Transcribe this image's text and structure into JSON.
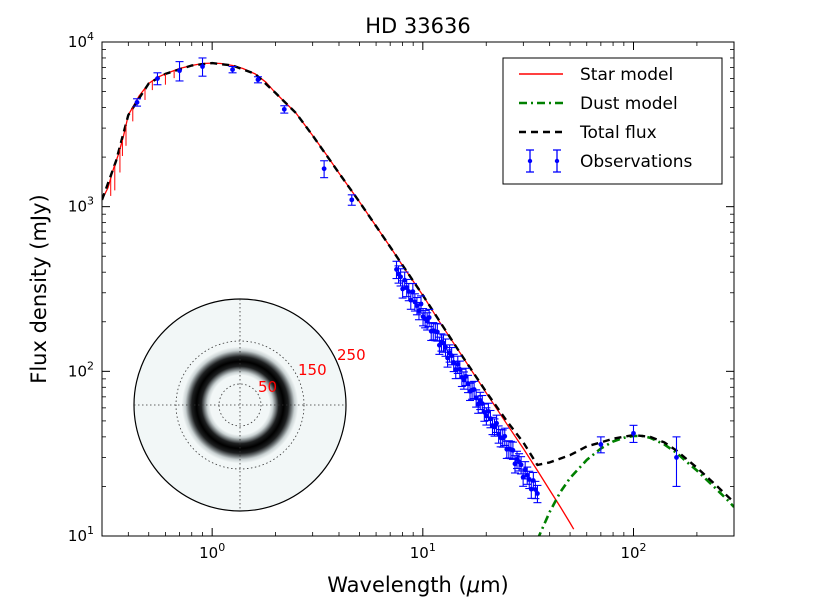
{
  "chart_data": {
    "type": "line",
    "title": "HD 33636",
    "xlabel": "Wavelength (μm)",
    "ylabel": "Flux density (mJy)",
    "xscale": "log",
    "yscale": "log",
    "xlim": [
      0.3,
      300
    ],
    "ylim": [
      10,
      10000
    ],
    "x_ticks": [
      {
        "value": 1,
        "label": "10⁰",
        "base": "10",
        "exp": "0"
      },
      {
        "value": 10,
        "label": "10¹",
        "base": "10",
        "exp": "1"
      },
      {
        "value": 100,
        "label": "10²",
        "base": "10",
        "exp": "2"
      }
    ],
    "y_ticks": [
      {
        "value": 10,
        "label": "10¹",
        "base": "10",
        "exp": "1"
      },
      {
        "value": 100,
        "label": "10²",
        "base": "10",
        "exp": "2"
      },
      {
        "value": 1000,
        "label": "10³",
        "base": "10",
        "exp": "3"
      },
      {
        "value": 10000,
        "label": "10⁴",
        "base": "10",
        "exp": "4"
      }
    ],
    "legend": {
      "position": "top-right",
      "entries": [
        {
          "label": "Star model",
          "style": "solid",
          "color": "#ff0000"
        },
        {
          "label": "Dust model",
          "style": "dashdot",
          "color": "#008000"
        },
        {
          "label": "Total flux",
          "style": "dashed",
          "color": "#000000"
        },
        {
          "label": "Observations",
          "style": "errorbar",
          "color": "#0000ff"
        }
      ]
    },
    "series": [
      {
        "name": "Star model",
        "color": "#ff0000",
        "points": [
          [
            0.3,
            1100
          ],
          [
            0.32,
            1300
          ],
          [
            0.34,
            1700
          ],
          [
            0.36,
            2100
          ],
          [
            0.38,
            2700
          ],
          [
            0.4,
            3600
          ],
          [
            0.45,
            4700
          ],
          [
            0.5,
            5600
          ],
          [
            0.55,
            6100
          ],
          [
            0.6,
            6400
          ],
          [
            0.7,
            6900
          ],
          [
            0.8,
            7200
          ],
          [
            0.9,
            7400
          ],
          [
            1.0,
            7450
          ],
          [
            1.1,
            7400
          ],
          [
            1.25,
            7200
          ],
          [
            1.4,
            6900
          ],
          [
            1.6,
            6400
          ],
          [
            1.8,
            5700
          ],
          [
            2.0,
            4900
          ],
          [
            2.5,
            3700
          ],
          [
            3.0,
            2700
          ],
          [
            3.5,
            2050
          ],
          [
            4.0,
            1600
          ],
          [
            5.0,
            1070
          ],
          [
            6.0,
            760
          ],
          [
            7.0,
            570
          ],
          [
            8.0,
            440
          ],
          [
            10.0,
            290
          ],
          [
            12.0,
            200
          ],
          [
            15.0,
            130
          ],
          [
            20.0,
            74
          ],
          [
            25.0,
            48
          ],
          [
            30.0,
            34
          ],
          [
            35.0,
            25
          ],
          [
            40.0,
            19
          ],
          [
            45.0,
            15
          ],
          [
            50.0,
            12
          ],
          [
            52.0,
            11
          ]
        ]
      },
      {
        "name": "Dust model",
        "color": "#008000",
        "points": [
          [
            35,
            9.5
          ],
          [
            40,
            14
          ],
          [
            45,
            18.5
          ],
          [
            50,
            22.5
          ],
          [
            60,
            29
          ],
          [
            70,
            34
          ],
          [
            80,
            37.5
          ],
          [
            90,
            39.5
          ],
          [
            100,
            40.5
          ],
          [
            110,
            40.5
          ],
          [
            120,
            39.5
          ],
          [
            140,
            36
          ],
          [
            160,
            32
          ],
          [
            180,
            28
          ],
          [
            200,
            25
          ],
          [
            240,
            20
          ],
          [
            280,
            16.5
          ],
          [
            300,
            15
          ]
        ]
      },
      {
        "name": "Total flux",
        "color": "#000000",
        "points": [
          [
            0.3,
            1100
          ],
          [
            0.35,
            1900
          ],
          [
            0.4,
            3600
          ],
          [
            0.5,
            5600
          ],
          [
            0.6,
            6400
          ],
          [
            0.8,
            7200
          ],
          [
            1.0,
            7450
          ],
          [
            1.25,
            7200
          ],
          [
            1.6,
            6400
          ],
          [
            2.0,
            4900
          ],
          [
            2.5,
            3700
          ],
          [
            3.0,
            2700
          ],
          [
            4.0,
            1600
          ],
          [
            5.0,
            1070
          ],
          [
            7.0,
            570
          ],
          [
            10.0,
            290
          ],
          [
            15.0,
            130
          ],
          [
            20.0,
            75
          ],
          [
            25.0,
            50
          ],
          [
            30.0,
            37
          ],
          [
            35.0,
            27
          ],
          [
            40.0,
            28
          ],
          [
            50.0,
            31
          ],
          [
            60.0,
            35
          ],
          [
            70.0,
            37
          ],
          [
            80.0,
            39
          ],
          [
            100.0,
            41
          ],
          [
            120.0,
            40
          ],
          [
            140.0,
            37
          ],
          [
            160.0,
            33
          ],
          [
            200.0,
            26
          ],
          [
            250.0,
            20
          ],
          [
            300,
            16
          ]
        ]
      }
    ],
    "observations": {
      "name": "Observations",
      "color": "#0000ff",
      "points": [
        {
          "x": 0.44,
          "y": 4300,
          "err": 220
        },
        {
          "x": 0.55,
          "y": 6000,
          "err": 500
        },
        {
          "x": 0.7,
          "y": 6700,
          "err": 900
        },
        {
          "x": 0.9,
          "y": 7100,
          "err": 900
        },
        {
          "x": 1.25,
          "y": 6800,
          "err": 300
        },
        {
          "x": 1.65,
          "y": 5900,
          "err": 250
        },
        {
          "x": 2.2,
          "y": 3900,
          "err": 200
        },
        {
          "x": 3.4,
          "y": 1700,
          "err": 200
        },
        {
          "x": 4.6,
          "y": 1100,
          "err": 80
        },
        {
          "x": 70,
          "y": 36,
          "err": 4
        },
        {
          "x": 100,
          "y": 42,
          "err": 5
        },
        {
          "x": 160,
          "y": 30,
          "err": 10
        }
      ],
      "spectrum": {
        "x_start": 7.5,
        "x_end": 35,
        "y_at_start": 400,
        "spectral_index": -2,
        "npoints": 70,
        "rel_err": 0.12
      }
    },
    "inset": {
      "type": "polar-image",
      "description": "dust ring image",
      "radial_ticks": [
        {
          "value": 50,
          "label": "50"
        },
        {
          "value": 150,
          "label": "150"
        },
        {
          "value": 250,
          "label": "250"
        }
      ],
      "rmax": 250,
      "ring_radius": 90,
      "label_color": "#ff0000"
    }
  }
}
